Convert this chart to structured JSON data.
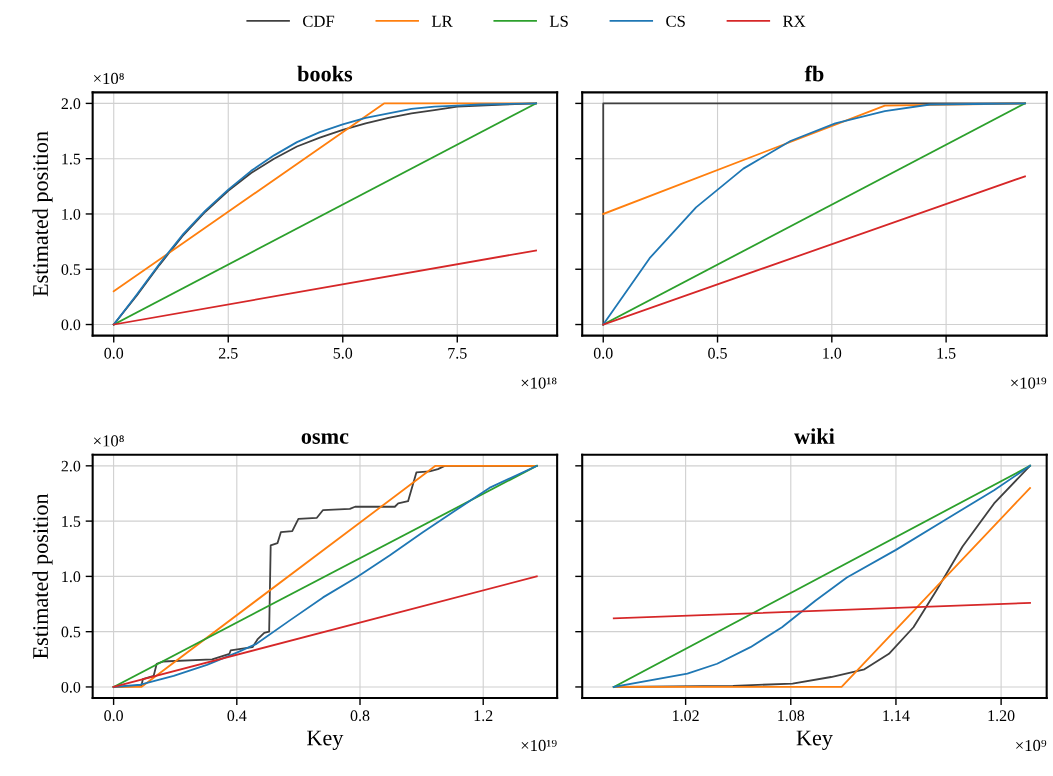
{
  "chart_data": [
    {
      "type": "line",
      "title": "books",
      "ylabel": "Estimated position",
      "legend": "top",
      "grid": true,
      "tick_labels": "xy",
      "annotations": [
        "×10¹⁸",
        "×10⁸"
      ],
      "xlim": [
        -0.46,
        9.68
      ],
      "ylim": [
        -0.1,
        2.1
      ],
      "xticks": [
        {
          "value": 0,
          "label": "0.0"
        },
        2.5,
        {
          "value": 5,
          "label": "5.0"
        },
        7.5
      ],
      "yticks": [
        {
          "value": 0,
          "label": "0.0"
        },
        0.5,
        {
          "value": 1,
          "label": "1.0"
        },
        1.5,
        {
          "value": 2,
          "label": "2.0"
        }
      ],
      "series": [
        {
          "name": "CDF",
          "color": "#404040",
          "x": [
            0,
            0.5,
            1,
            1.5,
            2,
            2.5,
            3,
            3.5,
            4,
            4.5,
            5,
            5.5,
            6,
            6.5,
            7,
            7.5,
            8,
            8.5,
            9.22
          ],
          "values": [
            0,
            0.26,
            0.54,
            0.8,
            1.02,
            1.21,
            1.37,
            1.5,
            1.61,
            1.69,
            1.76,
            1.82,
            1.87,
            1.91,
            1.94,
            1.97,
            1.98,
            1.99,
            2.0
          ]
        },
        {
          "name": "LR",
          "color": "#ff7f0e",
          "x": [
            0,
            5.9,
            9.22
          ],
          "values": [
            0.3,
            2.0,
            2.0
          ]
        },
        {
          "name": "LS",
          "color": "#2ca02c",
          "x": [
            0,
            9.22
          ],
          "values": [
            0,
            2.0
          ]
        },
        {
          "name": "CS",
          "color": "#1f77b4",
          "x": [
            0,
            0.5,
            1,
            1.5,
            2,
            2.5,
            3,
            3.5,
            4,
            4.5,
            5,
            5.5,
            6,
            6.5,
            7,
            7.5,
            8,
            9.22
          ],
          "values": [
            0,
            0.27,
            0.55,
            0.81,
            1.03,
            1.22,
            1.39,
            1.53,
            1.65,
            1.74,
            1.81,
            1.87,
            1.91,
            1.95,
            1.97,
            1.98,
            1.99,
            2.0
          ]
        },
        {
          "name": "RX",
          "color": "#d62728",
          "x": [
            0,
            9.22
          ],
          "values": [
            0,
            0.67
          ]
        }
      ]
    },
    {
      "type": "line",
      "title": "fb",
      "grid": true,
      "tick_labels": "x",
      "annotations": [
        "×10¹⁹"
      ],
      "xlim": [
        -0.092,
        1.94
      ],
      "ylim": [
        -0.1,
        2.1
      ],
      "xticks": [
        {
          "value": 0,
          "label": "0.0"
        },
        0.5,
        {
          "value": 1,
          "label": "1.0"
        },
        1.5
      ],
      "yticks": [
        0,
        0.5,
        1,
        1.5,
        2
      ],
      "series": [
        {
          "name": "CDF",
          "color": "#404040",
          "x": [
            0,
            0,
            1.845
          ],
          "values": [
            0,
            2.0,
            2.0
          ]
        },
        {
          "name": "LR",
          "color": "#ff7f0e",
          "x": [
            0,
            1.232,
            1.845
          ],
          "values": [
            1.0,
            1.98,
            2.0
          ]
        },
        {
          "name": "LS",
          "color": "#2ca02c",
          "x": [
            0,
            1.845
          ],
          "values": [
            0,
            2.0
          ]
        },
        {
          "name": "CS",
          "color": "#1f77b4",
          "x": [
            0,
            0.203,
            0.406,
            0.613,
            0.819,
            1.015,
            1.232,
            1.43,
            1.845
          ],
          "values": [
            0,
            0.6,
            1.06,
            1.41,
            1.66,
            1.82,
            1.93,
            1.99,
            2.0
          ]
        },
        {
          "name": "RX",
          "color": "#d62728",
          "x": [
            0,
            1.845
          ],
          "values": [
            0,
            1.34
          ]
        }
      ]
    },
    {
      "type": "line",
      "title": "osmc",
      "xlabel": "Key",
      "ylabel": "Estimated position",
      "grid": true,
      "tick_labels": "xy",
      "annotations": [
        "×10¹⁹",
        "×10⁸"
      ],
      "xlim": [
        -0.068,
        1.44
      ],
      "ylim": [
        -0.1,
        2.1
      ],
      "xticks": [
        {
          "value": 0,
          "label": "0.0"
        },
        0.4,
        0.8,
        1.2
      ],
      "yticks": [
        {
          "value": 0,
          "label": "0.0"
        },
        0.5,
        {
          "value": 1,
          "label": "1.0"
        },
        1.5,
        {
          "value": 2,
          "label": "2.0"
        }
      ],
      "series": [
        {
          "name": "CDF",
          "color": "#404040",
          "x": [
            0,
            0.09,
            0.095,
            0.13,
            0.14,
            0.16,
            0.32,
            0.376,
            0.38,
            0.451,
            0.467,
            0.489,
            0.505,
            0.51,
            0.532,
            0.543,
            0.58,
            0.6,
            0.66,
            0.68,
            0.767,
            0.784,
            0.913,
            0.924,
            0.956,
            0.983,
            1.026,
            1.053,
            1.075,
            1.374
          ],
          "values": [
            0,
            0.01,
            0.07,
            0.1,
            0.21,
            0.23,
            0.25,
            0.3,
            0.33,
            0.36,
            0.43,
            0.49,
            0.5,
            1.28,
            1.3,
            1.4,
            1.41,
            1.52,
            1.53,
            1.6,
            1.61,
            1.63,
            1.63,
            1.66,
            1.68,
            1.94,
            1.95,
            1.97,
            2.0,
            2.0
          ]
        },
        {
          "name": "LR",
          "color": "#ff7f0e",
          "x": [
            0,
            0.09,
            1.045,
            1.374
          ],
          "values": [
            0,
            0,
            2.0,
            2.0
          ]
        },
        {
          "name": "LS",
          "color": "#2ca02c",
          "x": [
            0,
            1.374
          ],
          "values": [
            0,
            2.0
          ]
        },
        {
          "name": "CS",
          "color": "#1f77b4",
          "x": [
            0,
            0.087,
            0.195,
            0.303,
            0.4,
            0.464,
            0.571,
            0.68,
            0.788,
            0.896,
            1.004,
            1.112,
            1.22,
            1.374
          ],
          "values": [
            0,
            0.02,
            0.1,
            0.2,
            0.31,
            0.39,
            0.6,
            0.81,
            0.99,
            1.19,
            1.4,
            1.6,
            1.8,
            2.0
          ]
        },
        {
          "name": "RX",
          "color": "#d62728",
          "x": [
            0,
            1.374
          ],
          "values": [
            0,
            1.0
          ]
        }
      ]
    },
    {
      "type": "line",
      "title": "wiki",
      "xlabel": "Key",
      "grid": true,
      "tick_labels": "x",
      "annotations": [
        "×10⁹"
      ],
      "xlim": [
        0.961,
        1.226
      ],
      "ylim": [
        -0.1,
        2.1
      ],
      "xticks": [
        1.02,
        1.08,
        1.14,
        {
          "value": 1.2,
          "label": "1.20"
        }
      ],
      "yticks": [
        0,
        0.5,
        1,
        1.5,
        2
      ],
      "series": [
        {
          "name": "CDF",
          "color": "#404040",
          "x": [
            0.979,
            1.047,
            1.081,
            1.103,
            1.122,
            1.136,
            1.15,
            1.163,
            1.178,
            1.196,
            1.2165
          ],
          "values": [
            0,
            0.01,
            0.03,
            0.09,
            0.16,
            0.3,
            0.54,
            0.87,
            1.27,
            1.66,
            2.0
          ]
        },
        {
          "name": "LR",
          "color": "#ff7f0e",
          "x": [
            0.979,
            1.109,
            1.2165
          ],
          "values": [
            0,
            0,
            1.8
          ]
        },
        {
          "name": "LS",
          "color": "#2ca02c",
          "x": [
            0.979,
            1.2165
          ],
          "values": [
            0,
            2.0
          ]
        },
        {
          "name": "CS",
          "color": "#1f77b4",
          "x": [
            0.979,
            1.021,
            1.038,
            1.057,
            1.075,
            1.094,
            1.112,
            1.14,
            1.168,
            1.196,
            1.2165
          ],
          "values": [
            0,
            0.12,
            0.21,
            0.36,
            0.54,
            0.78,
            0.99,
            1.24,
            1.51,
            1.78,
            2.0
          ]
        },
        {
          "name": "RX",
          "color": "#d62728",
          "x": [
            0.979,
            1.2165
          ],
          "values": [
            0.62,
            0.76
          ]
        }
      ]
    }
  ]
}
